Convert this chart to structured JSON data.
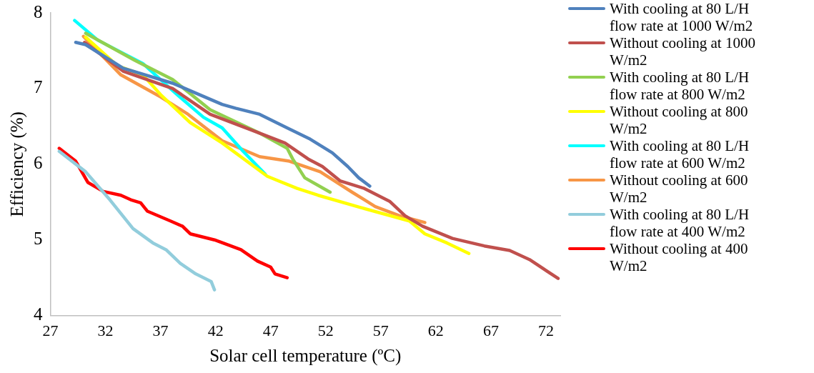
{
  "chart_data": {
    "type": "line",
    "xlabel": "Solar cell temperature (ºC)",
    "ylabel": "Efficiency (%)",
    "xlim": [
      27,
      73.3
    ],
    "xticks": [
      27,
      32,
      37,
      42,
      47,
      52,
      57,
      62,
      67,
      72
    ],
    "ylim": [
      4,
      8
    ],
    "yticks": [
      4,
      5,
      6,
      7,
      8
    ],
    "grid": false,
    "legend": "right",
    "marker": "none",
    "line_style": "solid",
    "series": [
      {
        "name": "With cooling at 80 L/H flow rate at 1000 W/m2",
        "color": "#4f81bd",
        "x": [
          29.3,
          30.2,
          33.6,
          38.1,
          42.6,
          43.8,
          46.0,
          48.5,
          50.6,
          52.6,
          54.0,
          55.0,
          56.0
        ],
        "values": [
          7.61,
          7.58,
          7.27,
          7.07,
          6.79,
          6.74,
          6.66,
          6.48,
          6.33,
          6.15,
          5.97,
          5.82,
          5.71
        ]
      },
      {
        "name": "Without cooling at 1000 W/m2",
        "color": "#c0504d",
        "x": [
          30.1,
          33.6,
          38.1,
          41.5,
          46.0,
          48.3,
          50.4,
          51.7,
          53.3,
          55.5,
          57.8,
          59.2,
          60.8,
          63.5,
          66.4,
          68.7,
          70.5,
          73.1
        ],
        "values": [
          7.61,
          7.23,
          7.0,
          6.66,
          6.41,
          6.28,
          6.07,
          5.97,
          5.78,
          5.68,
          5.51,
          5.32,
          5.18,
          5.02,
          4.92,
          4.86,
          4.74,
          4.49
        ]
      },
      {
        "name": "With cooling at 80 L/H flow rate at 800 W/m2",
        "color": "#92d050",
        "x": [
          30.2,
          34.7,
          38.1,
          41.5,
          46.0,
          48.5,
          49.0,
          50.1,
          52.4
        ],
        "values": [
          7.73,
          7.37,
          7.12,
          6.72,
          6.41,
          6.21,
          6.07,
          5.82,
          5.63
        ]
      },
      {
        "name": "Without cooling at 800 W/m2",
        "color": "#ffff00",
        "x": [
          30.2,
          33.1,
          35.4,
          37.0,
          39.7,
          42.6,
          46.7,
          49.4,
          51.3,
          55.1,
          59.6,
          61.0,
          63.0,
          65.0
        ],
        "values": [
          7.68,
          7.3,
          7.18,
          6.92,
          6.55,
          6.28,
          5.84,
          5.68,
          5.59,
          5.43,
          5.25,
          5.08,
          4.96,
          4.82
        ]
      },
      {
        "name": "With cooling at 80 L/H flow rate at 600 W/m2",
        "color": "#00ffff",
        "x": [
          29.2,
          31.3,
          35.4,
          38.5,
          40.9,
          42.6,
          44.5,
          46.5
        ],
        "values": [
          7.9,
          7.64,
          7.33,
          6.92,
          6.62,
          6.48,
          6.17,
          5.87
        ]
      },
      {
        "name": "Without cooling at 600 W/m2",
        "color": "#f79646",
        "x": [
          30.0,
          33.4,
          37.0,
          39.5,
          42.6,
          46.0,
          48.7,
          51.5,
          54.4,
          56.5,
          58.7,
          61.0
        ],
        "values": [
          7.69,
          7.18,
          6.89,
          6.66,
          6.31,
          6.1,
          6.04,
          5.9,
          5.63,
          5.44,
          5.32,
          5.23
        ]
      },
      {
        "name": "With cooling at 80 L/H flow rate at 400 W/m2",
        "color": "#92cddc",
        "x": [
          27.8,
          30.2,
          32.4,
          34.5,
          36.3,
          37.5,
          38.8,
          40.2,
          41.6,
          41.9
        ],
        "values": [
          6.17,
          5.9,
          5.53,
          5.15,
          4.96,
          4.87,
          4.69,
          4.55,
          4.45,
          4.34
        ]
      },
      {
        "name": "Without cooling at 400 W/m2",
        "color": "#ff0000",
        "x": [
          27.8,
          29.3,
          30.4,
          31.8,
          33.4,
          34.3,
          35.2,
          35.8,
          37.9,
          39.0,
          39.7,
          41.9,
          44.3,
          45.8,
          47.0,
          47.4,
          48.5
        ],
        "values": [
          6.21,
          6.04,
          5.76,
          5.64,
          5.59,
          5.53,
          5.49,
          5.38,
          5.25,
          5.18,
          5.08,
          5.0,
          4.87,
          4.72,
          4.64,
          4.55,
          4.5
        ]
      }
    ]
  }
}
